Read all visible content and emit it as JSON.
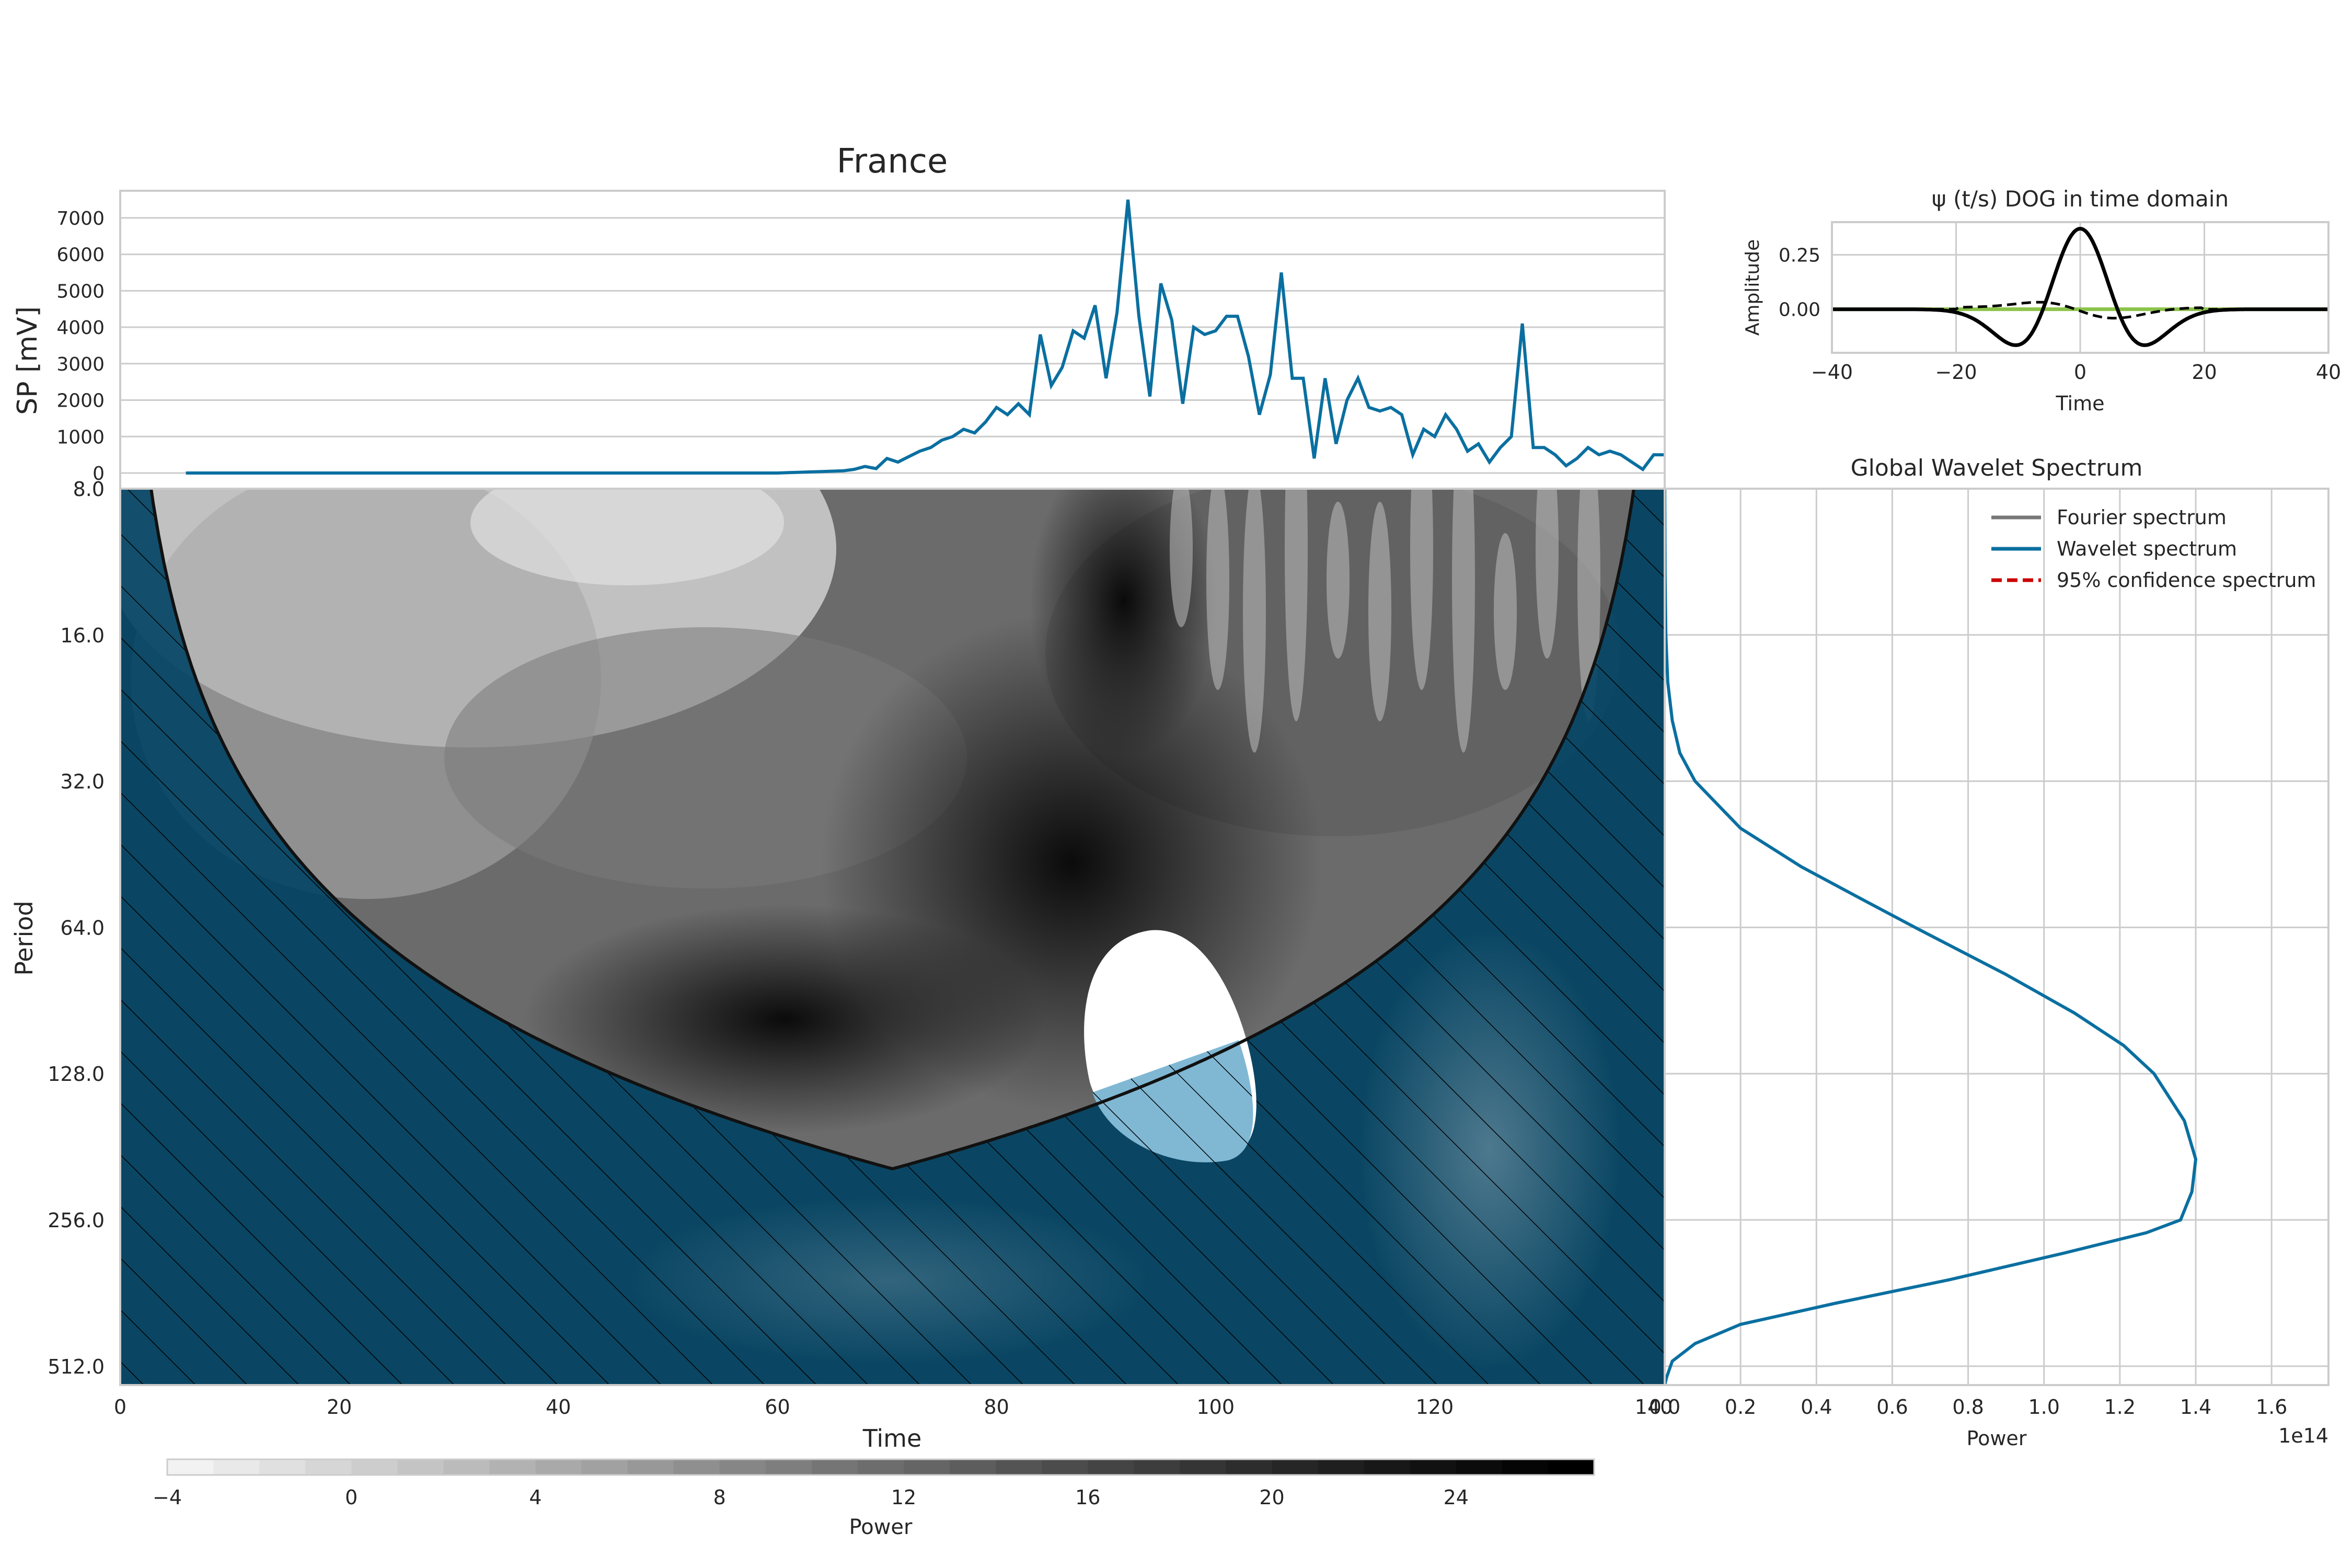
{
  "colors": {
    "series": "#0a6fa0",
    "grid": "#cccccc",
    "coi": "#0b4a68",
    "wavelet": "#000000",
    "green": "#8bc34a",
    "red": "#cc0000",
    "fourier": "#777777"
  },
  "chart_data": [
    {
      "type": "line",
      "panel": "time-series",
      "title": "France",
      "xlabel": "",
      "ylabel": "SP [mV]",
      "xlim": [
        0,
        141
      ],
      "ylim": [
        0,
        7600
      ],
      "yticks": [
        0,
        1000,
        2000,
        3000,
        4000,
        5000,
        6000,
        7000
      ],
      "grid": true,
      "x_start": 6,
      "values": [
        0,
        0,
        0,
        0,
        0,
        0,
        0,
        0,
        0,
        0,
        0,
        0,
        0,
        0,
        0,
        0,
        0,
        0,
        0,
        0,
        0,
        0,
        0,
        0,
        0,
        0,
        0,
        0,
        0,
        0,
        0,
        0,
        0,
        0,
        0,
        0,
        0,
        0,
        0,
        0,
        0,
        0,
        0,
        0,
        0,
        0,
        0,
        0,
        0,
        0,
        0,
        0,
        0,
        0,
        0,
        10,
        20,
        30,
        40,
        50,
        60,
        100,
        180,
        120,
        400,
        300,
        450,
        600,
        700,
        900,
        1000,
        1200,
        1100,
        1400,
        1800,
        1600,
        1900,
        1600,
        3800,
        2400,
        2900,
        3900,
        3700,
        4600,
        2600,
        4400,
        7500,
        4300,
        2100,
        5200,
        4200,
        1900,
        4000,
        3800,
        3900,
        4300,
        4300,
        3200,
        1600,
        2700,
        5500,
        2600,
        2600,
        400,
        2600,
        800,
        2000,
        2600,
        1800,
        1700,
        1800,
        1600,
        500,
        1200,
        1000,
        1600,
        1200,
        600,
        800,
        300,
        700,
        1000,
        4100,
        700,
        700,
        500,
        200,
        400,
        700,
        500,
        600,
        500,
        300,
        100,
        500,
        500
      ]
    },
    {
      "type": "line",
      "panel": "mother-wavelet",
      "title": "ψ (t/s) DOG in time domain",
      "xlabel": "Time",
      "ylabel": "Amplitude",
      "xlim": [
        -40,
        40
      ],
      "ylim": [
        -0.2,
        0.4
      ],
      "xticks": [
        "−40",
        "−20",
        "0",
        "20",
        "40"
      ],
      "yticks": [
        0.0,
        0.25
      ],
      "ytick_labels": [
        "0.00",
        "0.25"
      ],
      "grid": true,
      "series": [
        {
          "style": "solid-black",
          "function": "mexican-hat",
          "peak": 0.37,
          "width": 6.0
        },
        {
          "style": "dashed-black",
          "function": "imaginary",
          "amplitude": 0.02
        },
        {
          "style": "solid-green",
          "function": "flat",
          "value": 0.0
        }
      ]
    },
    {
      "type": "heatmap",
      "panel": "wavelet-power",
      "title": "",
      "xlabel": "Time",
      "ylabel": "Period",
      "xlim": [
        0,
        141
      ],
      "xticks": [
        0,
        20,
        40,
        60,
        80,
        100,
        120,
        140
      ],
      "xtick_labels": [
        "0",
        "20",
        "40",
        "60",
        "80",
        "100",
        "120",
        "140"
      ],
      "y_scale": "log2",
      "ylim": [
        8,
        560
      ],
      "yticks": [
        8,
        16,
        32,
        64,
        128,
        256,
        512
      ],
      "ytick_labels": [
        "8.0",
        "16.0",
        "32.0",
        "64.0",
        "128.0",
        "256.0",
        "512.0"
      ],
      "cone_of_influence": true,
      "significance_region": {
        "x_center": 94,
        "period_center": 120
      }
    },
    {
      "type": "line",
      "panel": "global-wavelet-spectrum",
      "title": "Global Wavelet Spectrum",
      "xlabel": "Power",
      "x_offset_label": "1e14",
      "xlim": [
        0,
        1.75
      ],
      "xticks": [
        0.0,
        0.2,
        0.4,
        0.6,
        0.8,
        1.0,
        1.2,
        1.4,
        1.6
      ],
      "xtick_labels": [
        "0.0",
        "0.2",
        "0.4",
        "0.6",
        "0.8",
        "1.0",
        "1.2",
        "1.4",
        "1.6"
      ],
      "y_scale": "log2",
      "legend": [
        "Fourier spectrum",
        "Wavelet spectrum",
        "95% confidence spectrum"
      ],
      "legend_position": "top-right",
      "series": [
        {
          "name": "Wavelet spectrum",
          "period": [
            8,
            12,
            16,
            20,
            24,
            28,
            32,
            40,
            48,
            56,
            64,
            80,
            96,
            112,
            128,
            160,
            192,
            224,
            256,
            272,
            300,
            340,
            380,
            420,
            460,
            500,
            540,
            560
          ],
          "power": [
            0.0,
            0.001,
            0.003,
            0.008,
            0.02,
            0.04,
            0.08,
            0.2,
            0.36,
            0.52,
            0.66,
            0.9,
            1.08,
            1.21,
            1.29,
            1.37,
            1.4,
            1.39,
            1.36,
            1.27,
            1.05,
            0.75,
            0.45,
            0.2,
            0.08,
            0.02,
            0.005,
            0.0
          ]
        }
      ]
    }
  ],
  "colorbar": {
    "label": "Power",
    "min": -4,
    "max": 27,
    "ticks": [
      -4,
      0,
      4,
      8,
      12,
      16,
      20,
      24
    ],
    "tick_labels": [
      "−4",
      "0",
      "4",
      "8",
      "12",
      "16",
      "20",
      "24"
    ]
  }
}
